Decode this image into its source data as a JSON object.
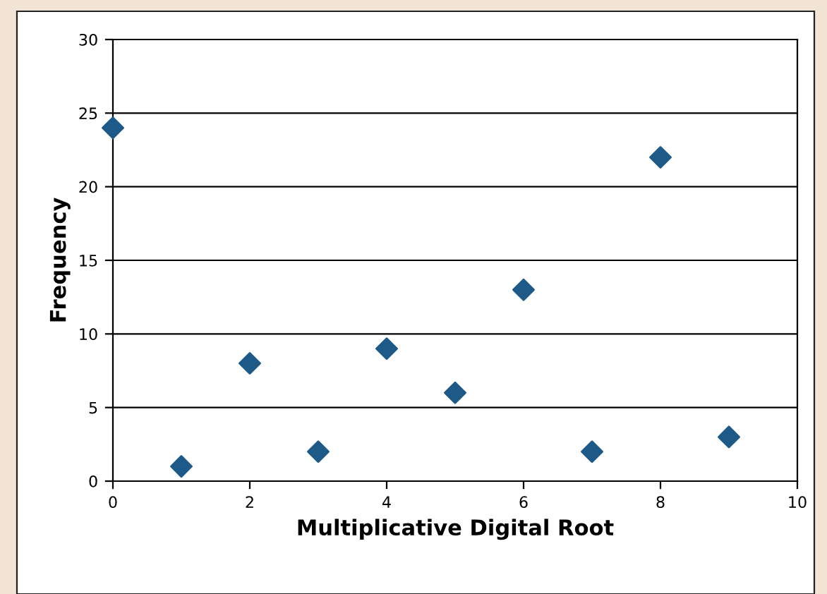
{
  "chart_data": {
    "type": "scatter",
    "xlabel": "Multiplicative Digital Root",
    "ylabel": "Frequency",
    "x": [
      0,
      1,
      2,
      3,
      4,
      5,
      6,
      7,
      8,
      9
    ],
    "series": [
      {
        "color": "#1d5a87",
        "values": [
          24,
          1,
          8,
          2,
          9,
          6,
          13,
          2,
          22,
          3
        ]
      }
    ],
    "xlim": [
      0,
      10
    ],
    "xticks": [
      0,
      2,
      4,
      6,
      8,
      10
    ],
    "ylim": [
      0,
      30
    ],
    "yticks": [
      0,
      5,
      10,
      15,
      20,
      25,
      30
    ],
    "grid": "y",
    "marker": "diamond",
    "legend": false
  }
}
